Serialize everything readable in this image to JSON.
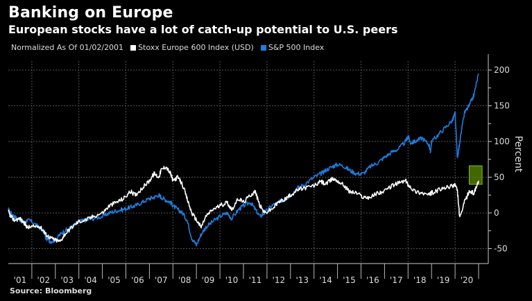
{
  "chart_data": {
    "type": "line",
    "title": "Banking on Europe",
    "subtitle": "European stocks have a lot of catch-up potential to U.S. peers",
    "note": "Normalized As Of 01/02/2001",
    "xlabel": "",
    "ylabel": "Percent",
    "ylim": [
      -72,
      222
    ],
    "xlim": [
      2001.0,
      2021.1
    ],
    "yticks": [
      200,
      150,
      100,
      50,
      0,
      -50
    ],
    "xticks": [
      "'01",
      "'02",
      "'03",
      "'04",
      "'05",
      "'06",
      "'07",
      "'08",
      "'09",
      "'10",
      "'11",
      "'12",
      "'13",
      "'14",
      "'15",
      "'16",
      "'17",
      "'18",
      "'19",
      "'20"
    ],
    "grid": true,
    "legend_position": "top-left",
    "source": "Source: Bloomberg",
    "highlight_box": {
      "x": [
        2020.6,
        2021.15
      ],
      "y": [
        40,
        66
      ],
      "color": "#5a8a00"
    },
    "series": [
      {
        "name": "Stoxx Europe 600 Index (USD)",
        "color": "#ffffff",
        "x": [
          2001.0,
          2001.1,
          2001.25,
          2001.5,
          2001.7,
          2001.8,
          2002.0,
          2002.3,
          2002.5,
          2002.6,
          2002.8,
          2003.0,
          2003.2,
          2003.4,
          2003.7,
          2004.0,
          2004.3,
          2004.6,
          2005.0,
          2005.3,
          2005.6,
          2005.9,
          2006.2,
          2006.4,
          2006.7,
          2007.0,
          2007.2,
          2007.4,
          2007.5,
          2007.7,
          2007.9,
          2008.0,
          2008.2,
          2008.4,
          2008.6,
          2008.8,
          2009.0,
          2009.2,
          2009.4,
          2009.7,
          2010.0,
          2010.3,
          2010.5,
          2010.8,
          2011.0,
          2011.3,
          2011.5,
          2011.7,
          2011.9,
          2012.2,
          2012.5,
          2012.8,
          2013.0,
          2013.3,
          2013.6,
          2014.0,
          2014.3,
          2014.5,
          2014.8,
          2015.0,
          2015.3,
          2015.5,
          2015.8,
          2016.1,
          2016.4,
          2016.7,
          2017.0,
          2017.3,
          2017.6,
          2017.9,
          2018.0,
          2018.3,
          2018.6,
          2018.9,
          2019.0,
          2019.3,
          2019.6,
          2019.9,
          2020.0,
          2020.1,
          2020.2,
          2020.4,
          2020.6,
          2020.8,
          2021.0
        ],
        "values": [
          2,
          -5,
          -10,
          -8,
          -15,
          -20,
          -20,
          -18,
          -25,
          -30,
          -35,
          -38,
          -40,
          -30,
          -20,
          -12,
          -10,
          -5,
          0,
          10,
          15,
          20,
          30,
          25,
          35,
          45,
          55,
          50,
          60,
          65,
          55,
          45,
          50,
          40,
          20,
          0,
          -10,
          -20,
          -5,
          5,
          10,
          15,
          5,
          20,
          15,
          25,
          30,
          10,
          0,
          5,
          15,
          20,
          25,
          32,
          35,
          38,
          44,
          40,
          48,
          45,
          38,
          30,
          28,
          22,
          22,
          28,
          30,
          38,
          42,
          45,
          40,
          30,
          28,
          25,
          28,
          32,
          35,
          38,
          40,
          30,
          -8,
          15,
          30,
          28,
          45
        ]
      },
      {
        "name": "S&P 500 Index",
        "color": "#1e7ee0",
        "x": [
          2001.0,
          2001.1,
          2001.25,
          2001.5,
          2001.7,
          2001.8,
          2002.0,
          2002.3,
          2002.5,
          2002.6,
          2002.8,
          2003.0,
          2003.2,
          2003.4,
          2003.7,
          2004.0,
          2004.3,
          2004.6,
          2005.0,
          2005.3,
          2005.6,
          2005.9,
          2006.2,
          2006.4,
          2006.7,
          2007.0,
          2007.2,
          2007.4,
          2007.5,
          2007.7,
          2007.9,
          2008.0,
          2008.2,
          2008.4,
          2008.6,
          2008.8,
          2009.0,
          2009.2,
          2009.4,
          2009.7,
          2010.0,
          2010.3,
          2010.5,
          2010.8,
          2011.0,
          2011.3,
          2011.5,
          2011.7,
          2011.9,
          2012.2,
          2012.5,
          2012.8,
          2013.0,
          2013.3,
          2013.6,
          2014.0,
          2014.3,
          2014.5,
          2014.8,
          2015.0,
          2015.3,
          2015.5,
          2015.8,
          2016.1,
          2016.4,
          2016.7,
          2017.0,
          2017.3,
          2017.6,
          2017.9,
          2018.0,
          2018.1,
          2018.3,
          2018.6,
          2018.9,
          2018.95,
          2019.0,
          2019.3,
          2019.6,
          2019.9,
          2020.0,
          2020.1,
          2020.2,
          2020.4,
          2020.6,
          2020.8,
          2021.0
        ],
        "values": [
          5,
          0,
          -5,
          -10,
          -15,
          -10,
          -12,
          -20,
          -25,
          -35,
          -40,
          -38,
          -30,
          -25,
          -20,
          -12,
          -10,
          -8,
          -5,
          0,
          3,
          5,
          8,
          10,
          15,
          20,
          22,
          25,
          22,
          18,
          15,
          10,
          5,
          0,
          -10,
          -35,
          -45,
          -30,
          -20,
          -12,
          -5,
          0,
          -8,
          5,
          10,
          15,
          5,
          -5,
          0,
          10,
          15,
          20,
          25,
          35,
          40,
          50,
          55,
          60,
          65,
          68,
          65,
          60,
          55,
          55,
          65,
          70,
          78,
          85,
          90,
          100,
          108,
          98,
          100,
          105,
          95,
          85,
          100,
          110,
          120,
          130,
          140,
          75,
          100,
          140,
          150,
          165,
          195
        ]
      }
    ]
  }
}
